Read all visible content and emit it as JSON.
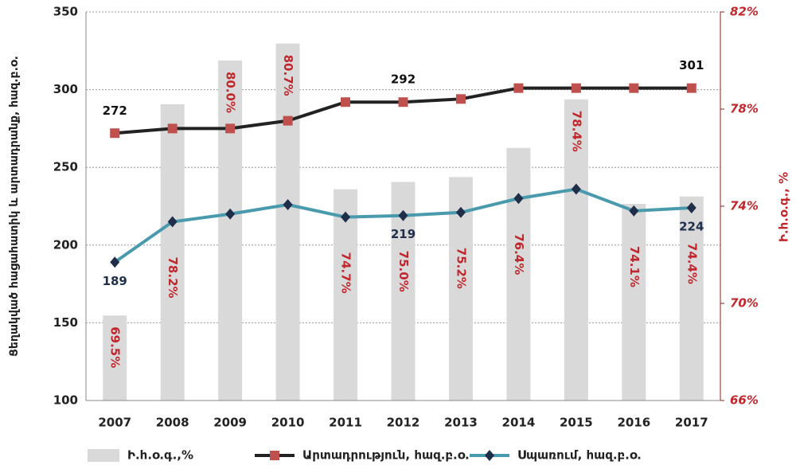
{
  "chart_data": {
    "type": "bar_line",
    "categories": [
      "2007",
      "2008",
      "2009",
      "2010",
      "2011",
      "2012",
      "2013",
      "2014",
      "2015",
      "2016",
      "2017"
    ],
    "ylabel": "Ցեղակված հացահատիկ և արտադրանք, հազ.բ.օ.",
    "y2label": "Ի.հ.օ.գ., %",
    "ylim": [
      100,
      350
    ],
    "yticks": [
      100,
      150,
      200,
      250,
      300,
      350
    ],
    "y2lim": [
      66,
      82
    ],
    "y2ticks": [
      {
        "value": 66,
        "label": "66%"
      },
      {
        "value": 70,
        "label": "70%"
      },
      {
        "value": 74,
        "label": "74%"
      },
      {
        "value": 78,
        "label": "78%"
      },
      {
        "value": 82,
        "label": "82%"
      }
    ],
    "grid": true,
    "legend": "bottom",
    "series": [
      {
        "name": "Ի.հ.օ.գ.,%",
        "type": "bar",
        "axis": "y2",
        "color": "#d9d9d9",
        "values": [
          69.5,
          78.2,
          80.0,
          80.7,
          74.7,
          75.0,
          75.2,
          76.4,
          78.4,
          74.1,
          74.4
        ],
        "value_labels": [
          "69.5%",
          "78.2%",
          "80.0%",
          "80.7%",
          "74.7%",
          "75.0%",
          "75.2%",
          "76.4%",
          "78.4%",
          "74.1%",
          "74.4%"
        ]
      },
      {
        "name": "Արտադրություն, հազ.բ.օ.",
        "type": "line",
        "color": "#222222",
        "marker_color": "#c0504d",
        "values": [
          272,
          275,
          275,
          280,
          292,
          292,
          294,
          301,
          301,
          301,
          301
        ],
        "value_labels": [
          "272",
          null,
          null,
          null,
          null,
          "292",
          null,
          null,
          null,
          null,
          "301"
        ]
      },
      {
        "name": "Սպառում, հազ.բ.օ.",
        "type": "line",
        "color": "#4a9aae",
        "marker_color": "#1f2f4a",
        "values": [
          189,
          215,
          220,
          226,
          218,
          219,
          221,
          230,
          236,
          222,
          224
        ],
        "value_labels": [
          "189",
          null,
          null,
          null,
          null,
          "219",
          null,
          null,
          null,
          null,
          "224"
        ]
      }
    ]
  }
}
